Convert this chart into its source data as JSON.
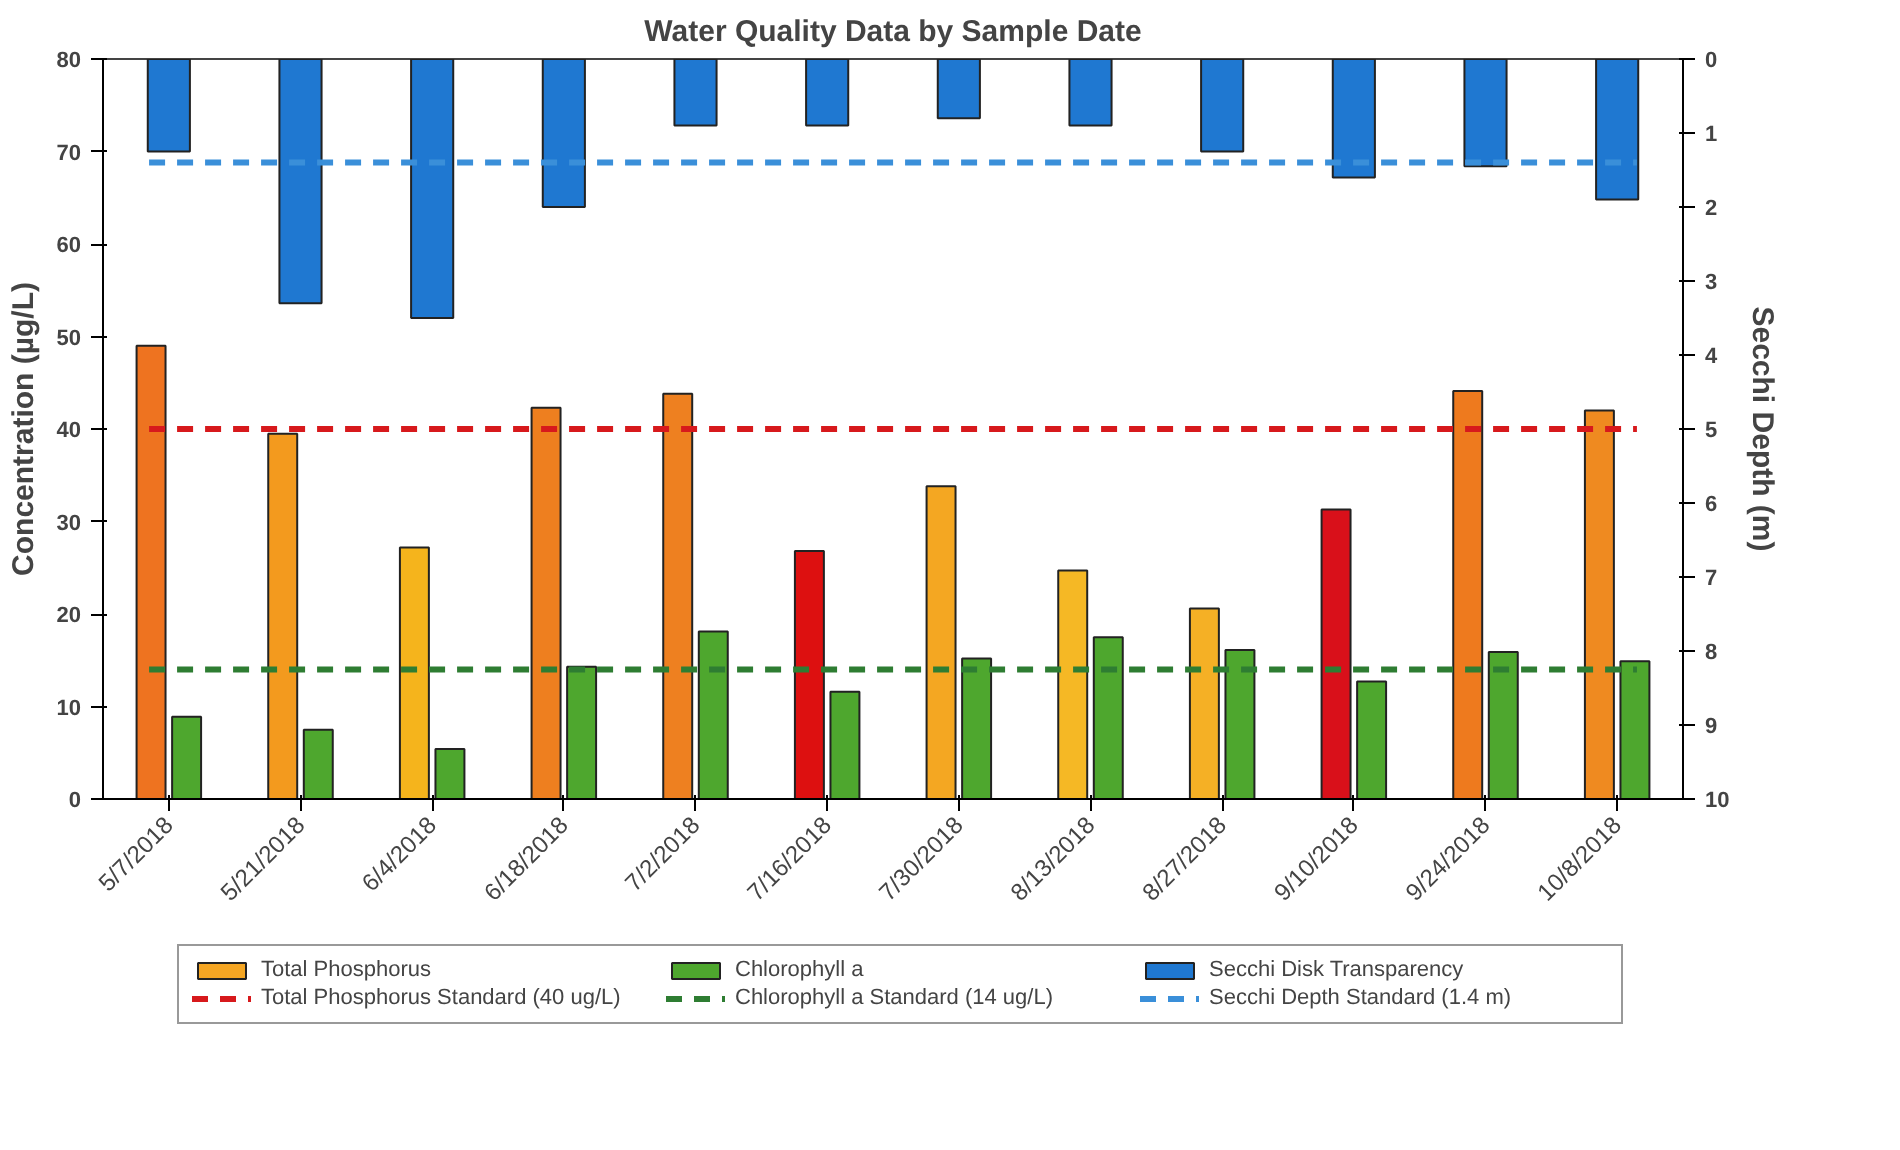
{
  "chart_data": {
    "type": "bar",
    "title": "Water Quality Data by Sample Date",
    "ylabel": "Concentration (µg/L)",
    "y2label": "Secchi Depth (m)",
    "categories": [
      "5/7/2018",
      "5/21/2018",
      "6/4/2018",
      "6/18/2018",
      "7/2/2018",
      "7/16/2018",
      "7/30/2018",
      "8/13/2018",
      "8/27/2018",
      "9/10/2018",
      "9/24/2018",
      "10/8/2018"
    ],
    "series": [
      {
        "name": "Total Phosphorus",
        "color": "#f5a623",
        "colors": [
          "#ee7320",
          "#f39a1e",
          "#f5b41c",
          "#ee7f1f",
          "#ee8020",
          "#dd1010",
          "#f4a722",
          "#f5b825",
          "#f5b025",
          "#d9101a",
          "#ee7a1e",
          "#ef8a20"
        ],
        "values": [
          49.0,
          39.5,
          27.2,
          42.3,
          43.8,
          26.8,
          33.8,
          24.7,
          20.6,
          31.3,
          44.1,
          42.0
        ]
      },
      {
        "name": "Chlorophyll a",
        "color": "#4ea72e",
        "values": [
          8.9,
          7.5,
          5.4,
          14.3,
          18.1,
          11.6,
          15.2,
          17.5,
          16.1,
          12.7,
          15.9,
          14.9
        ]
      },
      {
        "name": "Secchi Disk Transparency",
        "color": "#1f78d1",
        "axis": "y2",
        "values": [
          1.25,
          3.3,
          3.5,
          2.0,
          0.9,
          0.9,
          0.8,
          0.9,
          1.25,
          1.6,
          1.45,
          1.9
        ]
      }
    ],
    "ref_lines": [
      {
        "axis": "y",
        "value": 40,
        "label": "Total Phosphorus Standard (40 ug/L)",
        "color": "#d7191c",
        "line_style": "dashed"
      },
      {
        "axis": "y",
        "value": 14,
        "label": "Chlorophyll a Standard (14 ug/L)",
        "color": "#2e7d32",
        "line_style": "dashed"
      },
      {
        "axis": "y2",
        "value": 1.4,
        "label": "Secchi Depth Standard (1.4 m)",
        "color": "#3a8fd9",
        "line_style": "dashed"
      }
    ],
    "ylim": [
      0,
      80
    ],
    "yticks": [
      0,
      10,
      20,
      30,
      40,
      50,
      60,
      70,
      80
    ],
    "y2lim": [
      10,
      0
    ],
    "y2ticks": [
      0,
      1,
      2,
      3,
      4,
      5,
      6,
      7,
      8,
      9,
      10
    ],
    "legend": "bottom",
    "grid": false
  }
}
